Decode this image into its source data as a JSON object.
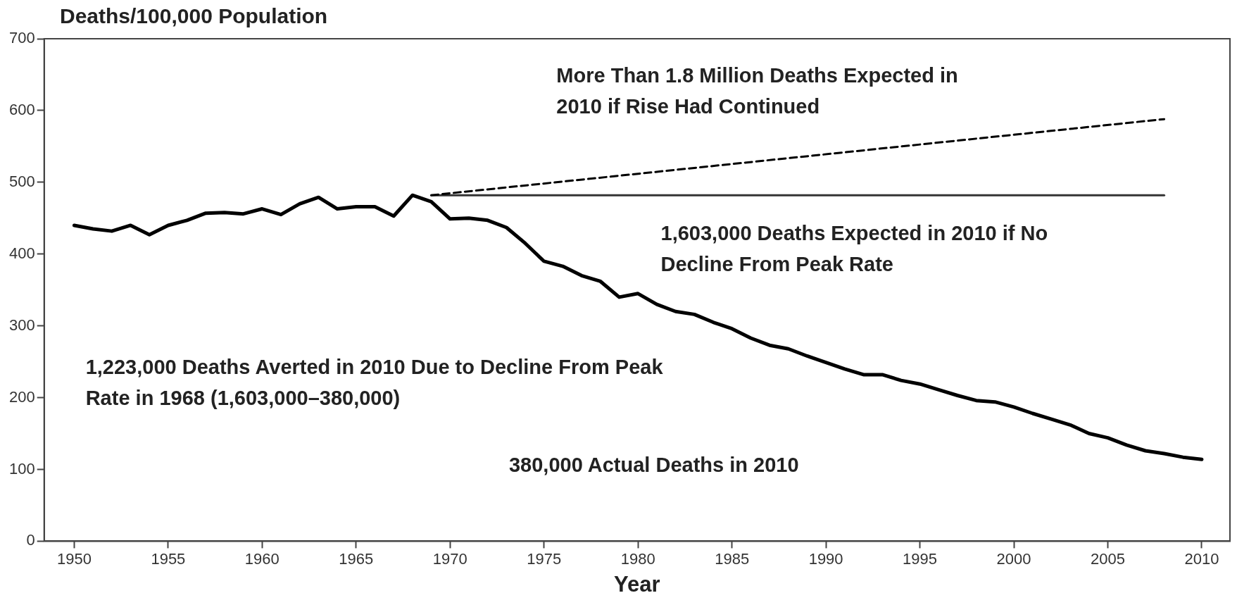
{
  "chart_data": {
    "type": "line",
    "ylabel": "Deaths/100,000 Population",
    "xlabel": "Year",
    "xlim": [
      1948.4,
      2011.5
    ],
    "xticks": [
      1950,
      1955,
      1960,
      1965,
      1970,
      1975,
      1980,
      1985,
      1990,
      1995,
      2000,
      2005,
      2010
    ],
    "ylim": [
      0,
      700
    ],
    "yticks": [
      0,
      100,
      200,
      300,
      400,
      500,
      600,
      700
    ],
    "grid": false,
    "legend": false,
    "marker": "none",
    "series": [
      {
        "color": "#000000",
        "line_style": "solid",
        "x": [
          1950,
          1951,
          1952,
          1953,
          1954,
          1955,
          1956,
          1957,
          1958,
          1959,
          1960,
          1961,
          1962,
          1963,
          1964,
          1965,
          1966,
          1967,
          1968,
          1969,
          1970,
          1971,
          1972,
          1973,
          1974,
          1975,
          1976,
          1977,
          1978,
          1979,
          1980,
          1981,
          1982,
          1983,
          1984,
          1985,
          1986,
          1987,
          1988,
          1989,
          1990,
          1991,
          1992,
          1993,
          1994,
          1995,
          1996,
          1997,
          1998,
          1999,
          2000,
          2001,
          2002,
          2003,
          2004,
          2005,
          2006,
          2007,
          2008,
          2009,
          2010
        ],
        "values": [
          440,
          435,
          432,
          440,
          427,
          440,
          447,
          457,
          458,
          456,
          463,
          455,
          470,
          479,
          463,
          466,
          466,
          453,
          482,
          473,
          449,
          450,
          447,
          437,
          415,
          390,
          383,
          370,
          362,
          340,
          345,
          330,
          320,
          316,
          305,
          296,
          283,
          273,
          268,
          258,
          249,
          240,
          232,
          232,
          224,
          219,
          211,
          203,
          196,
          194,
          187,
          178,
          170,
          162,
          150,
          144,
          134,
          126,
          122,
          117,
          114
        ]
      },
      {
        "color": "#000000",
        "line_style": "dashed",
        "x": [
          1969,
          2008
        ],
        "values": [
          482,
          588
        ]
      },
      {
        "color": "#333333",
        "line_style": "solid",
        "x": [
          1969,
          2008
        ],
        "values": [
          482,
          482
        ]
      }
    ],
    "annotations": [
      "More Than 1.8 Million Deaths Expected in 2010 if Rise Had Continued",
      "1,603,000 Deaths Expected in 2010 if No Decline From Peak Rate",
      "1,223,000 Deaths Averted in 2010 Due to Decline From Peak Rate in 1968 (1,603,000–380,000)",
      "380,000 Actual Deaths in 2010"
    ]
  }
}
